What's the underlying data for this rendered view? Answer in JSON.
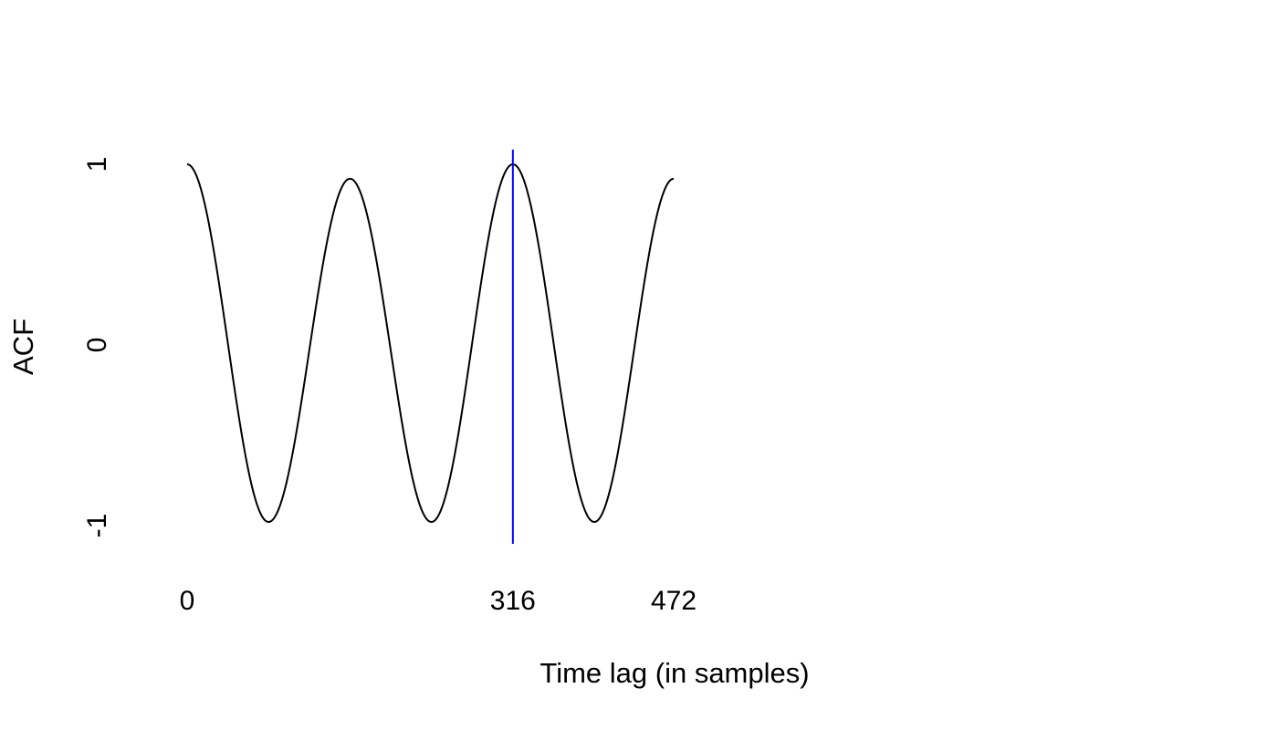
{
  "chart_data": {
    "type": "line",
    "xlabel": "Time lag (in samples)",
    "ylabel": "ACF",
    "xlim": [
      0,
      472
    ],
    "ylim": [
      -1,
      1
    ],
    "grid": false,
    "legend": "none",
    "x_ticks": [
      {
        "value": 0,
        "label": "0"
      },
      {
        "value": 316,
        "label": "316"
      },
      {
        "value": 472,
        "label": "472"
      }
    ],
    "y_ticks": [
      {
        "value": -1,
        "label": "-1"
      },
      {
        "value": 0,
        "label": "0"
      },
      {
        "value": 1,
        "label": "1"
      }
    ],
    "series": [
      {
        "color": "#000000",
        "description_of_shape": "damped cosine",
        "period": 158,
        "x": [
          0,
          79,
          158,
          237,
          316,
          395,
          472
        ],
        "y": [
          1.0,
          -0.98,
          0.92,
          -0.98,
          1.0,
          -0.98,
          0.92
        ]
      }
    ],
    "annotations": [
      {
        "type": "vline",
        "x": 316,
        "color": "#0000ff"
      }
    ],
    "colors": {
      "line": "#000000",
      "vline": "#0000ff",
      "background": "#ffffff"
    }
  }
}
